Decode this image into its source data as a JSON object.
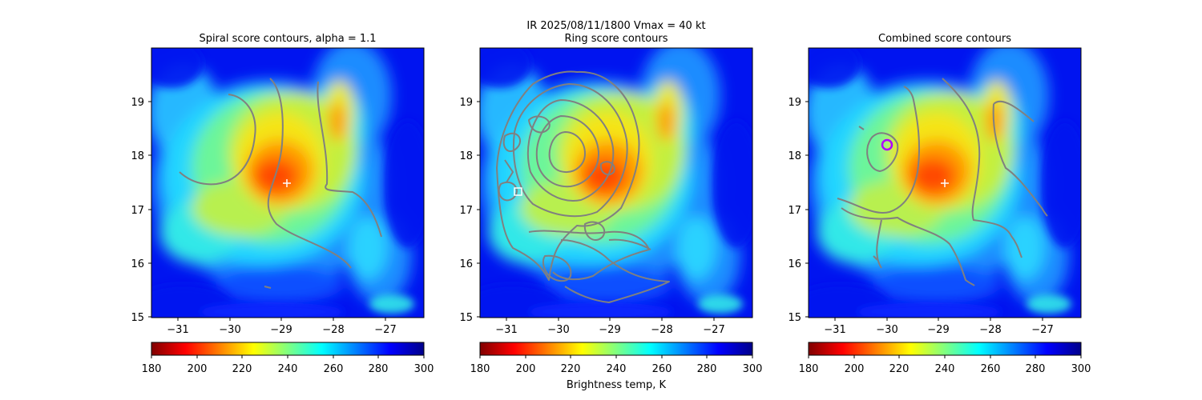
{
  "figure": {
    "suptitle_line1": "IR  2025/08/11/1800    Vmax = 40 kt",
    "colorbar_label": "Brightness temp, K"
  },
  "chart_data": [
    {
      "type": "heatmap",
      "title": "Spiral score contours, alpha =  1.1",
      "xlim": [
        -31.5,
        -26.4
      ],
      "ylim": [
        15,
        20
      ],
      "xticks": [
        -31,
        -30,
        -29,
        -28,
        -27
      ],
      "xtick_labels": [
        "−31",
        "−30",
        "−29",
        "−28",
        "−27"
      ],
      "yticks": [
        15,
        16,
        17,
        18,
        19
      ],
      "ytick_labels": [
        "15",
        "16",
        "17",
        "18",
        "19"
      ],
      "marker": {
        "kind": "plus",
        "x": -28.9,
        "y": 17.48,
        "color": "#ffffff"
      },
      "contour_color": "#808080",
      "colorbar": {
        "cmap": "jet_r",
        "range": [
          180,
          300
        ],
        "ticks": [
          180,
          200,
          220,
          240,
          260,
          280,
          300
        ]
      }
    },
    {
      "type": "heatmap",
      "title": "Ring score contours",
      "xlim": [
        -31.5,
        -26.4
      ],
      "ylim": [
        15,
        20
      ],
      "xticks": [
        -31,
        -30,
        -29,
        -28,
        -27
      ],
      "xtick_labels": [
        "−31",
        "−30",
        "−29",
        "−28",
        "−27"
      ],
      "yticks": [
        15,
        16,
        17,
        18,
        19
      ],
      "ytick_labels": [
        "15",
        "16",
        "17",
        "18",
        "19"
      ],
      "marker": {
        "kind": "square",
        "x": -30.75,
        "y": 17.33,
        "color": "#ffffff"
      },
      "contour_color": "#808080",
      "colorbar": {
        "cmap": "jet_r",
        "range": [
          180,
          300
        ],
        "ticks": [
          180,
          200,
          220,
          240,
          260,
          280,
          300
        ]
      }
    },
    {
      "type": "heatmap",
      "title": "Combined score contours",
      "xlim": [
        -31.5,
        -26.4
      ],
      "ylim": [
        15,
        20
      ],
      "xticks": [
        -31,
        -30,
        -29,
        -28,
        -27
      ],
      "xtick_labels": [
        "−31",
        "−30",
        "−29",
        "−28",
        "−27"
      ],
      "yticks": [
        15,
        16,
        17,
        18,
        19
      ],
      "ytick_labels": [
        "15",
        "16",
        "17",
        "18",
        "19"
      ],
      "marker": {
        "kind": "plus",
        "x": -28.9,
        "y": 17.48,
        "color": "#ffffff"
      },
      "ring_marker": {
        "x": -30.0,
        "y": 18.2,
        "color": "#b000ff"
      },
      "contour_color": "#808080",
      "colorbar": {
        "cmap": "jet_r",
        "range": [
          180,
          300
        ],
        "ticks": [
          180,
          200,
          220,
          240,
          260,
          280,
          300
        ]
      }
    }
  ]
}
